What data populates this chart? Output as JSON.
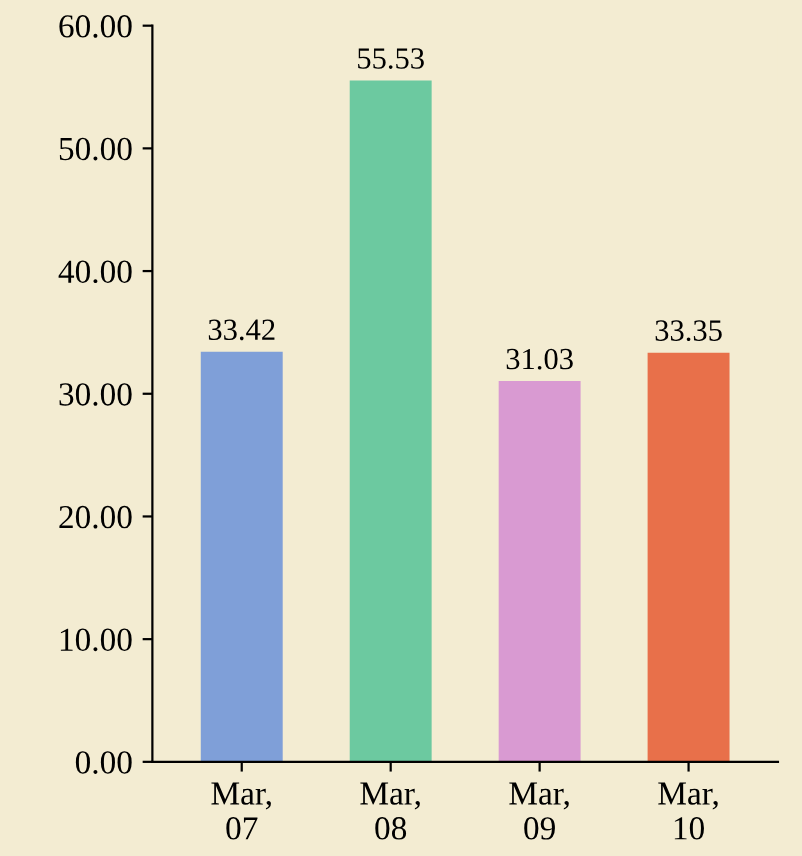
{
  "chart_data": {
    "type": "bar",
    "categories": [
      "Mar,\n07",
      "Mar,\n08",
      "Mar,\n09",
      "Mar,\n10"
    ],
    "values": [
      33.42,
      55.53,
      31.03,
      33.35
    ],
    "colors": [
      "#7f9fd8",
      "#6cc9a0",
      "#d99ad2",
      "#e8704a"
    ],
    "data_labels": true,
    "ylim": [
      0,
      60
    ],
    "yticks": [
      {
        "value": 0,
        "label": "0.00"
      },
      {
        "value": 10,
        "label": "10.00"
      },
      {
        "value": 20,
        "label": "20.00"
      },
      {
        "value": 30,
        "label": "30.00"
      },
      {
        "value": 40,
        "label": "40.00"
      },
      {
        "value": 50,
        "label": "50.00"
      },
      {
        "value": 60,
        "label": "60.00"
      }
    ],
    "grid": false
  }
}
